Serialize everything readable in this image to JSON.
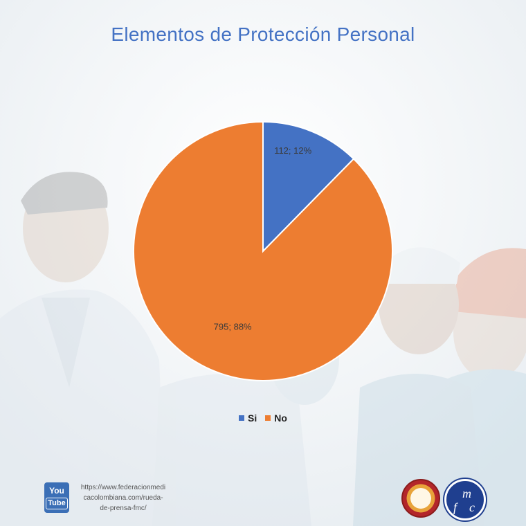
{
  "chart_data": {
    "type": "pie",
    "title": "Elementos de Protección Personal",
    "slices": [
      {
        "name": "Si",
        "value": 112,
        "percent": 12,
        "label": "112; 12%",
        "color": "#4472c4"
      },
      {
        "name": "No",
        "value": 795,
        "percent": 88,
        "label": "795; 88%",
        "color": "#ed7d31"
      }
    ],
    "legend_position": "bottom"
  },
  "footer": {
    "youtube_icon": "youtube-icon",
    "youtube_line1": "You",
    "youtube_line2": "Tube",
    "url_lines": [
      "https://www.federacionmedi",
      "cacolombiana.com/rueda-",
      "de-prensa-fmc/"
    ],
    "logo1_icon": "medical-seal-icon",
    "logo2_icon": "fmc-logo-icon",
    "logo2_letters": [
      "m",
      "f",
      "c"
    ]
  }
}
